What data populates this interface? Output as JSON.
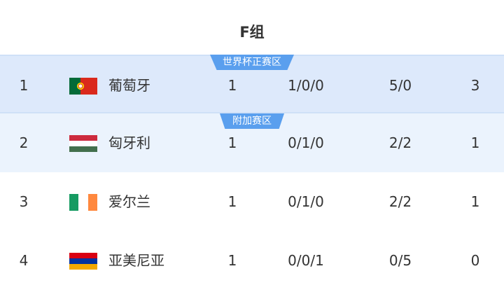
{
  "title": "F组",
  "rows": [
    {
      "rank": "1",
      "flag": "portugal-flag",
      "team": "葡萄牙",
      "played": "1",
      "wdl": "1/0/0",
      "goals": "5/0",
      "points": "3",
      "badge": "世界杯正赛区"
    },
    {
      "rank": "2",
      "flag": "hungary-flag",
      "team": "匈牙利",
      "played": "1",
      "wdl": "0/1/0",
      "goals": "2/2",
      "points": "1",
      "badge": "附加赛区"
    },
    {
      "rank": "3",
      "flag": "ireland-flag",
      "team": "爱尔兰",
      "played": "1",
      "wdl": "0/1/0",
      "goals": "2/2",
      "points": "1"
    },
    {
      "rank": "4",
      "flag": "armenia-flag",
      "team": "亚美尼亚",
      "played": "1",
      "wdl": "0/0/1",
      "goals": "0/5",
      "points": "0"
    }
  ],
  "colors": {
    "badge": "#5a9fee",
    "row_qualify": "#dde9fb",
    "row_playoff": "#ebf3fd"
  }
}
